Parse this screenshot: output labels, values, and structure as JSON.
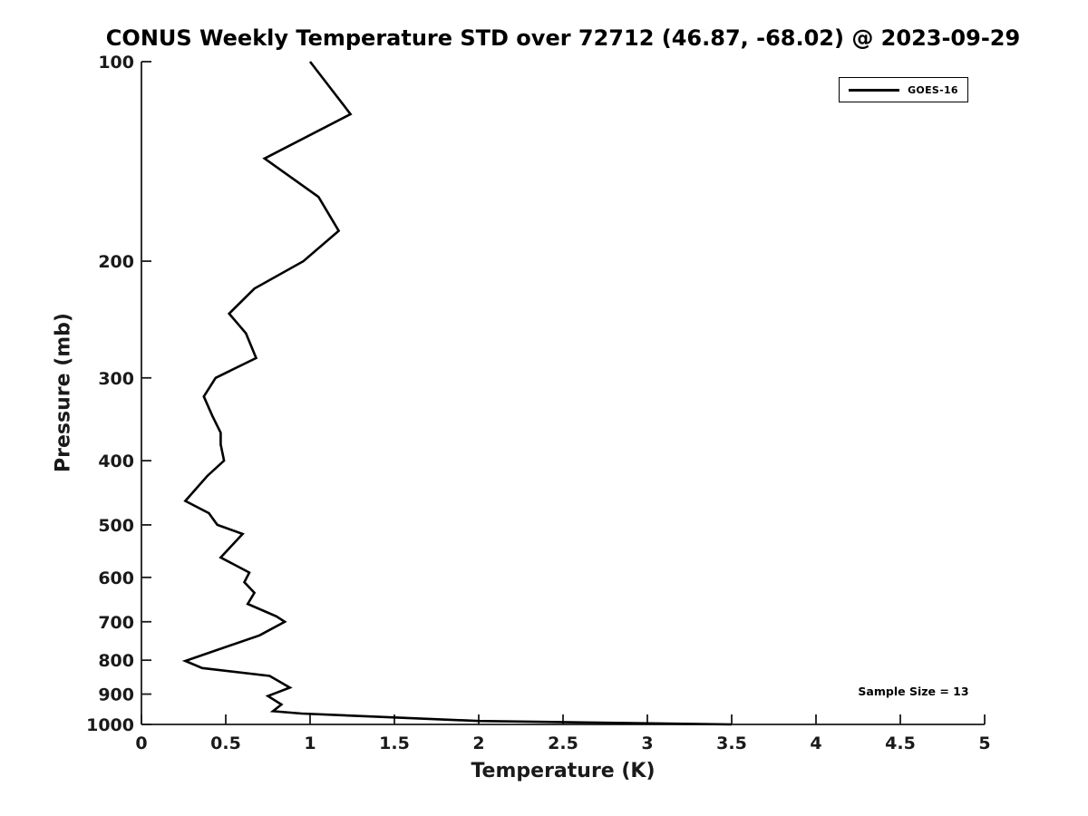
{
  "colors": {
    "line": "#000000",
    "text": "#1a1a1a",
    "background": "#ffffff"
  },
  "chart_data": {
    "type": "line",
    "title": "CONUS Weekly Temperature STD over 72712 (46.87, -68.02) @ 2023-09-29",
    "xlabel": "Temperature (K)",
    "ylabel": "Pressure (mb)",
    "xlim": [
      0,
      5
    ],
    "ylim": [
      100,
      1000
    ],
    "y_scale": "log",
    "y_inverted": true,
    "grid": false,
    "legend_position": "top-right",
    "x_ticks": [
      0,
      0.5,
      1,
      1.5,
      2,
      2.5,
      3,
      3.5,
      4,
      4.5,
      5
    ],
    "x_tick_labels": [
      "0",
      "0.5",
      "1",
      "1.5",
      "2",
      "2.5",
      "3",
      "3.5",
      "4",
      "4.5",
      "5"
    ],
    "y_ticks": [
      100,
      200,
      300,
      400,
      500,
      600,
      700,
      800,
      900,
      1000
    ],
    "y_tick_labels": [
      "100",
      "200",
      "300",
      "400",
      "500",
      "600",
      "700",
      "800",
      "900",
      "1000"
    ],
    "sample_size": 13,
    "annotations": [
      {
        "text": "Sample Size = 13",
        "x": 4.55,
        "y_pressure_mb": 915
      }
    ],
    "series": [
      {
        "name": "GOES-16",
        "color": "#000000",
        "x_temperature_std_K": [
          1.0,
          1.24,
          0.73,
          1.05,
          1.17,
          0.96,
          0.67,
          0.52,
          0.62,
          0.68,
          0.44,
          0.37,
          0.42,
          0.47,
          0.47,
          0.49,
          0.39,
          0.26,
          0.4,
          0.45,
          0.6,
          0.47,
          0.64,
          0.61,
          0.67,
          0.63,
          0.8,
          0.85,
          0.7,
          0.26,
          0.36,
          0.76,
          0.88,
          0.75,
          0.83,
          0.78,
          0.95,
          1.5,
          2.0,
          3.5
        ],
        "y_pressure_mb": [
          100,
          120,
          140,
          160,
          180,
          200,
          220,
          240,
          257,
          280,
          300,
          320,
          342,
          363,
          378,
          400,
          422,
          460,
          480,
          500,
          516,
          560,
          590,
          610,
          633,
          658,
          687,
          700,
          734,
          802,
          822,
          845,
          880,
          906,
          933,
          955,
          963,
          976,
          988,
          1000
        ]
      }
    ]
  }
}
